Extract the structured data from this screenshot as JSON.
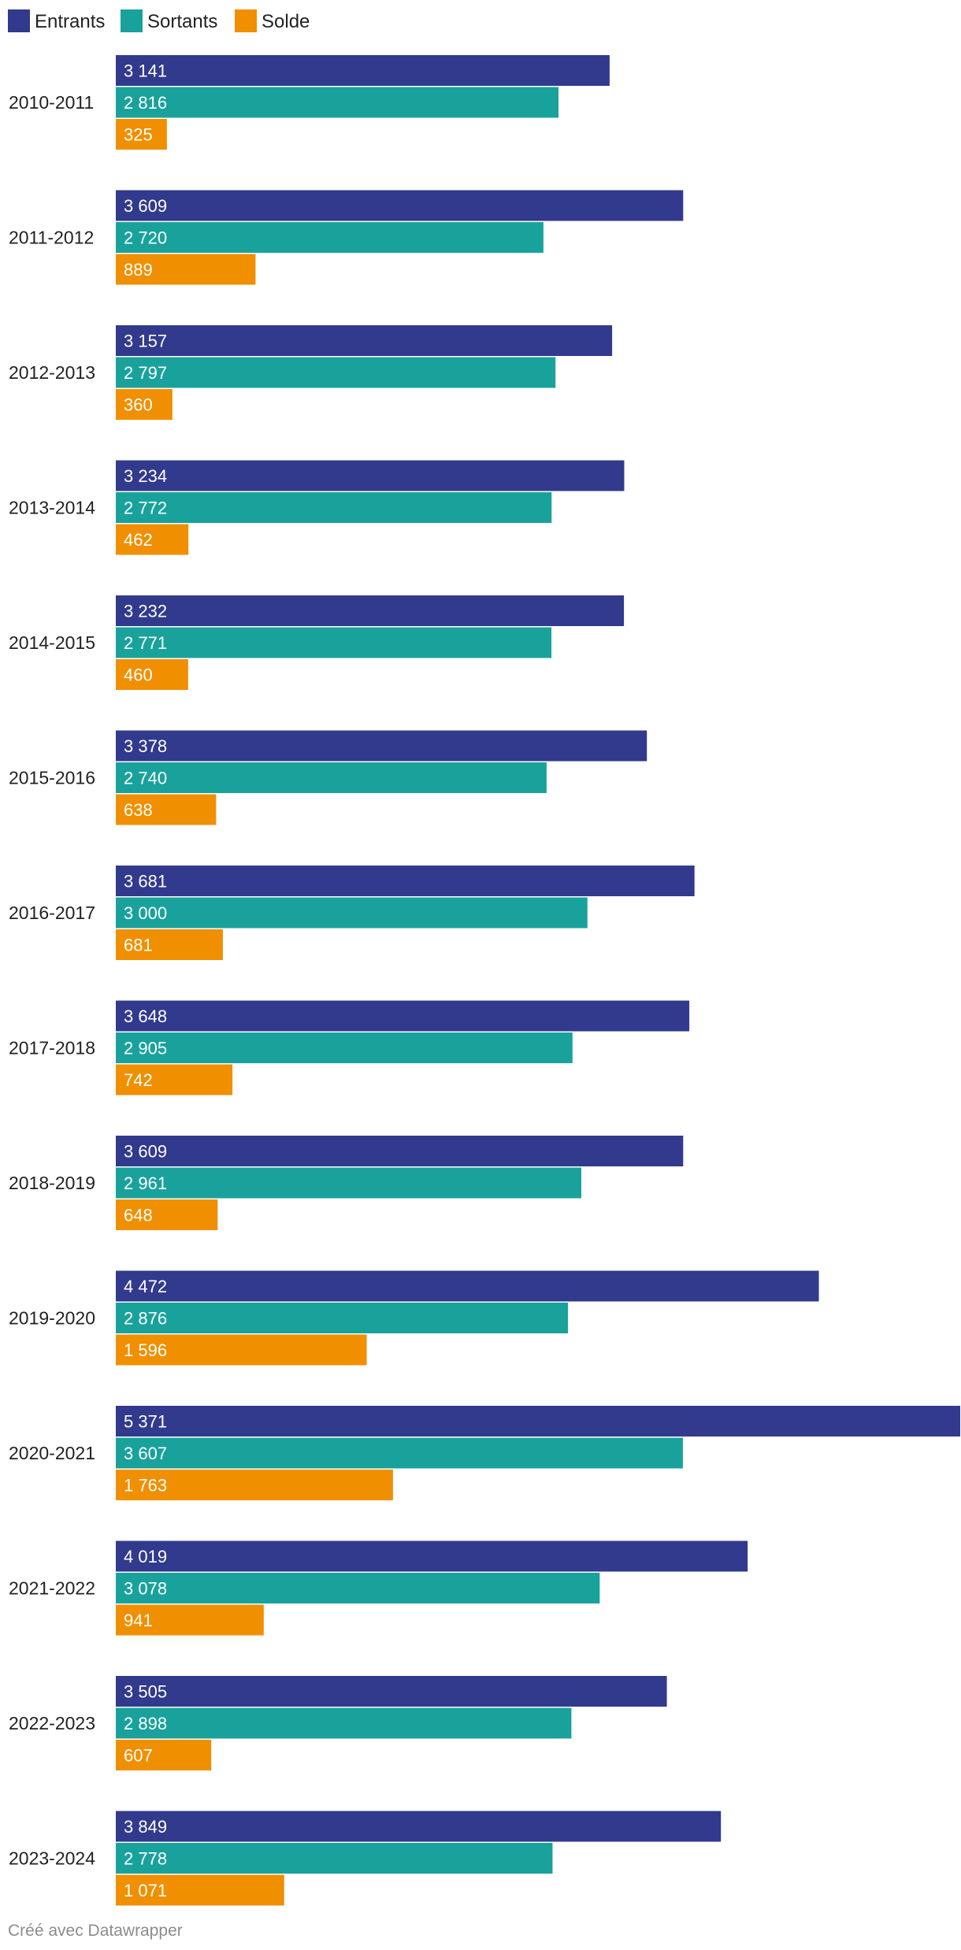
{
  "chart_data": {
    "type": "bar",
    "orientation": "horizontal",
    "categories": [
      "2010-2011",
      "2011-2012",
      "2012-2013",
      "2013-2014",
      "2014-2015",
      "2015-2016",
      "2016-2017",
      "2017-2018",
      "2018-2019",
      "2019-2020",
      "2020-2021",
      "2021-2022",
      "2022-2023",
      "2023-2024"
    ],
    "series": [
      {
        "name": "Entrants",
        "color": "#313a8c",
        "values": [
          3141,
          3609,
          3157,
          3234,
          3232,
          3378,
          3681,
          3648,
          3609,
          4472,
          5371,
          4019,
          3505,
          3849
        ],
        "labels": [
          "3 141",
          "3 609",
          "3 157",
          "3 234",
          "3 232",
          "3 378",
          "3 681",
          "3 648",
          "3 609",
          "4 472",
          "5 371",
          "4 019",
          "3 505",
          "3 849"
        ]
      },
      {
        "name": "Sortants",
        "color": "#19a29c",
        "values": [
          2816,
          2720,
          2797,
          2772,
          2771,
          2740,
          3000,
          2905,
          2961,
          2876,
          3607,
          3078,
          2898,
          2778
        ],
        "labels": [
          "2 816",
          "2 720",
          "2 797",
          "2 772",
          "2 771",
          "2 740",
          "3 000",
          "2 905",
          "2 961",
          "2 876",
          "3 607",
          "3 078",
          "2 898",
          "2 778"
        ]
      },
      {
        "name": "Solde",
        "color": "#f08f00",
        "values": [
          325,
          889,
          360,
          462,
          460,
          638,
          681,
          742,
          648,
          1596,
          1763,
          941,
          607,
          1071
        ],
        "labels": [
          "325",
          "889",
          "360",
          "462",
          "460",
          "638",
          "681",
          "742",
          "648",
          "1 596",
          "1 763",
          "941",
          "607",
          "1 071"
        ]
      }
    ],
    "title": "",
    "xlabel": "",
    "ylabel": "",
    "xlim": [
      0,
      5371
    ],
    "grid": false,
    "legend": "top-left"
  },
  "footer": {
    "credit": "Créé avec Datawrapper"
  }
}
